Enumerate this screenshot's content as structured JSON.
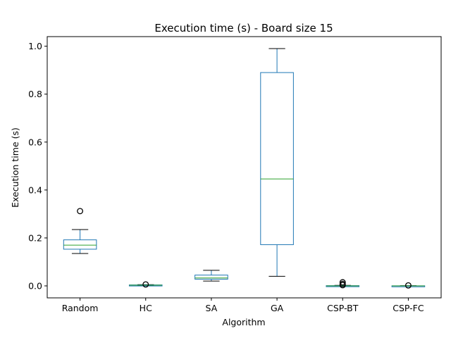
{
  "chart_data": {
    "type": "box",
    "title": "Execution time (s) - Board size 15",
    "xlabel": "Algorithm",
    "ylabel": "Execution time (s)",
    "ylim": [
      -0.05,
      1.04
    ],
    "yticks": [
      0.0,
      0.2,
      0.4,
      0.6,
      0.8,
      1.0
    ],
    "ytick_labels": [
      "0.0",
      "0.2",
      "0.4",
      "0.6",
      "0.8",
      "1.0"
    ],
    "grid": false,
    "colors": {
      "box": "#1f77b4",
      "median": "#2ca02c",
      "whisker_cap": "#000000",
      "flier": "#000000"
    },
    "categories": [
      "Random",
      "HC",
      "SA",
      "GA",
      "CSP-BT",
      "CSP-FC"
    ],
    "boxes": [
      {
        "name": "Random",
        "whisker_low": 0.135,
        "q1": 0.153,
        "median": 0.17,
        "q3": 0.192,
        "whisker_high": 0.235,
        "fliers": [
          0.312
        ]
      },
      {
        "name": "HC",
        "whisker_low": 0.001,
        "q1": 0.002,
        "median": 0.003,
        "q3": 0.004,
        "whisker_high": 0.005,
        "fliers": [
          0.006
        ]
      },
      {
        "name": "SA",
        "whisker_low": 0.02,
        "q1": 0.028,
        "median": 0.033,
        "q3": 0.045,
        "whisker_high": 0.065,
        "fliers": []
      },
      {
        "name": "GA",
        "whisker_low": 0.04,
        "q1": 0.172,
        "median": 0.446,
        "q3": 0.89,
        "whisker_high": 0.99,
        "fliers": []
      },
      {
        "name": "CSP-BT",
        "whisker_low": 0.0,
        "q1": 0.0,
        "median": 0.0,
        "q3": 0.001,
        "whisker_high": 0.002,
        "fliers": [
          0.003,
          0.008,
          0.015
        ]
      },
      {
        "name": "CSP-FC",
        "whisker_low": 0.0,
        "q1": 0.0,
        "median": 0.0,
        "q3": 0.0005,
        "whisker_high": 0.001,
        "fliers": [
          0.002
        ]
      }
    ]
  }
}
